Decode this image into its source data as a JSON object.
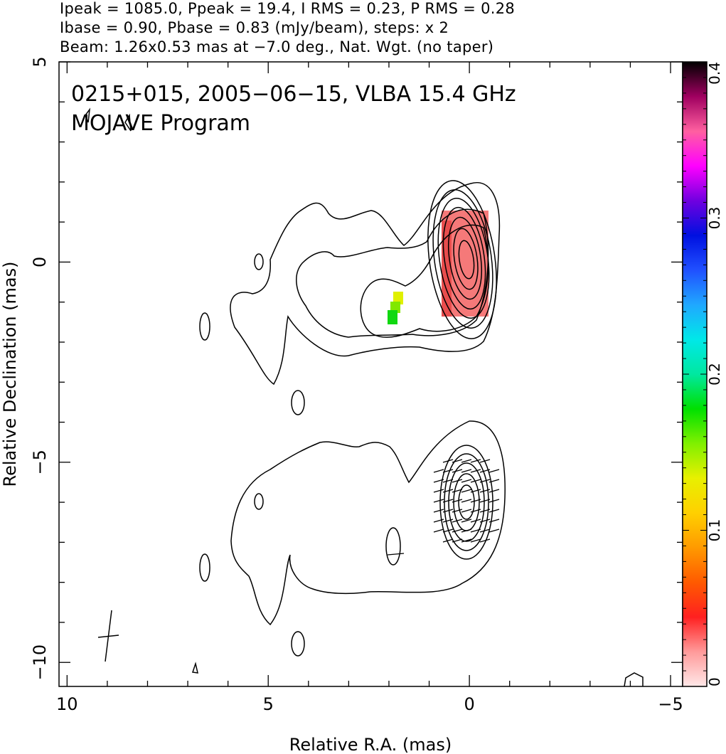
{
  "header": {
    "line1": "Ipeak = 1085.0, Ppeak = 19.4, I RMS = 0.23, P RMS = 0.28",
    "line2": "Ibase = 0.90, Pbase = 0.83 (mJy/beam), steps: x 2",
    "line3": "Beam: 1.26x0.53 mas at −7.0 deg., Nat. Wgt. (no taper)"
  },
  "chart_data": {
    "type": "contour",
    "title": "0215+015, 2005−06−15, VLBA 15.4 GHz",
    "subtitle": "MOJAVE Program",
    "xlabel": "Relative R.A. (mas)",
    "ylabel": "Relative Declination (mas)",
    "xlim": [
      10.2,
      -5.3
    ],
    "ylim": [
      -10.6,
      5.0
    ],
    "x_ticks": [
      {
        "value": 10,
        "label": "10"
      },
      {
        "value": 5,
        "label": "5"
      },
      {
        "value": 0,
        "label": "0"
      },
      {
        "value": -5,
        "label": "−5"
      }
    ],
    "y_ticks": [
      {
        "value": 5,
        "label": "5"
      },
      {
        "value": 0,
        "label": "0"
      },
      {
        "value": -5,
        "label": "−5"
      },
      {
        "value": -10,
        "label": "−10"
      }
    ],
    "colorbar": {
      "range": [
        0,
        0.4
      ],
      "ticks": [
        {
          "value": 0,
          "label": "0"
        },
        {
          "value": 0.1,
          "label": "0.1"
        },
        {
          "value": 0.2,
          "label": "0.2"
        },
        {
          "value": 0.3,
          "label": "0.3"
        },
        {
          "value": 0.4,
          "label": "0.4"
        }
      ],
      "stops": [
        "#ffe8e8",
        "#ff9a9a",
        "#ff2020",
        "#ff5a00",
        "#ff9a00",
        "#ffd000",
        "#e8f000",
        "#80f000",
        "#00e000",
        "#00e8a0",
        "#00e8e8",
        "#20a8ff",
        "#2050ff",
        "#0010e0",
        "#7000e0",
        "#ff00ff",
        "#ff60a0",
        "#a00060",
        "#000000"
      ]
    },
    "top_panel": {
      "core": {
        "x": 0,
        "y": 0,
        "rx": 0.3,
        "ry": 0.55,
        "levels": 8
      },
      "fractional_polarization_region": {
        "x_range": [
          -0.55,
          0.65
        ],
        "y_range": [
          -1.35,
          1.25
        ],
        "value": 0.06
      },
      "jet_polarization_patch": {
        "x_range": [
          1.65,
          2.05
        ],
        "y_range": [
          -1.55,
          -0.75
        ],
        "value": 0.19
      }
    },
    "bottom_panel": {
      "core": {
        "x": 0,
        "y": -6.0,
        "rx": 0.35,
        "ry": 0.5
      },
      "evpa_vectors": "short line segments across the core region"
    },
    "beam": {
      "major_mas": 1.26,
      "minor_mas": 0.53,
      "pa_deg": -7.0,
      "x": 9.0,
      "y": -9.3
    }
  }
}
